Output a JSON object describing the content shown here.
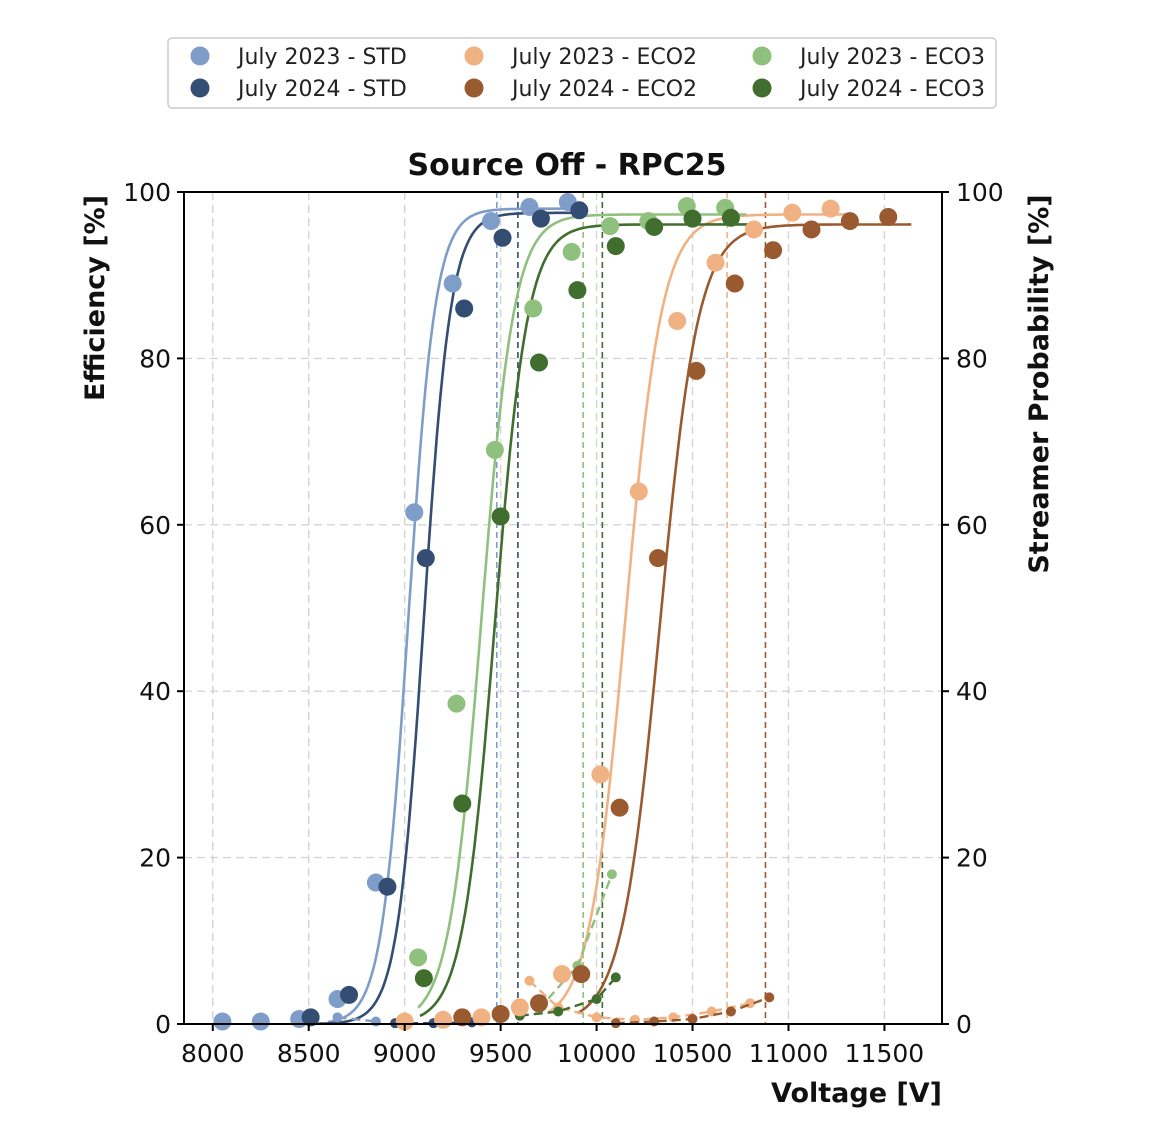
{
  "chart_data": {
    "type": "scatter",
    "title": "Source Off - RPC25",
    "xlabel": "Voltage [V]",
    "ylabel": "Efficiency [%]",
    "y2label": "Streamer Probability [%]",
    "xlim": [
      7850,
      11800
    ],
    "ylim": [
      0,
      100
    ],
    "y2lim": [
      0,
      100
    ],
    "xticks": [
      8000,
      8500,
      9000,
      9500,
      10000,
      10500,
      11000,
      11500
    ],
    "yticks": [
      0,
      20,
      40,
      60,
      80,
      100
    ],
    "grid": true,
    "grid_style": "dashed",
    "legend_position": "top-center, above plot",
    "series": [
      {
        "name": "July 2023 - STD",
        "color": "#7f9dc9",
        "efficiency": [
          [
            8050,
            0.3
          ],
          [
            8250,
            0.3
          ],
          [
            8450,
            0.6
          ],
          [
            8650,
            3
          ],
          [
            8850,
            17
          ],
          [
            9050,
            61.5
          ],
          [
            9250,
            89
          ],
          [
            9450,
            96.5
          ],
          [
            9650,
            98.2
          ],
          [
            9850,
            98.8
          ]
        ],
        "fit": {
          "max": 98,
          "center": 9020,
          "width": 70,
          "xmin": 8600,
          "xmax": 9920
        },
        "streamer": [
          [
            8650,
            0.8
          ],
          [
            8850,
            0.3
          ]
        ],
        "knee_voltage": 9480
      },
      {
        "name": "July 2024 - STD",
        "color": "#334d73",
        "efficiency": [
          [
            8510,
            0.8
          ],
          [
            8710,
            3.5
          ],
          [
            8910,
            16.5
          ],
          [
            9110,
            56
          ],
          [
            9310,
            86
          ],
          [
            9510,
            94.5
          ],
          [
            9710,
            96.8
          ],
          [
            9910,
            97.8
          ]
        ],
        "fit": {
          "max": 97.5,
          "center": 9100,
          "width": 70,
          "xmin": 8550,
          "xmax": 9920
        },
        "streamer": [
          [
            8950,
            0.1
          ],
          [
            9150,
            0.1
          ],
          [
            9350,
            0.2
          ]
        ],
        "knee_voltage": 9590
      },
      {
        "name": "July 2023 - ECO2",
        "color": "#f0b283",
        "efficiency": [
          [
            9000,
            0.3
          ],
          [
            9200,
            0.5
          ],
          [
            9400,
            0.8
          ],
          [
            9600,
            2
          ],
          [
            9820,
            6
          ],
          [
            10020,
            30
          ],
          [
            10220,
            64
          ],
          [
            10420,
            84.5
          ],
          [
            10620,
            91.5
          ],
          [
            10820,
            95.5
          ],
          [
            11020,
            97.5
          ],
          [
            11220,
            98
          ]
        ],
        "fit": {
          "max": 97.3,
          "center": 10150,
          "width": 95,
          "xmin": 9750,
          "xmax": 11320
        },
        "streamer": [
          [
            9650,
            5.2
          ],
          [
            9800,
            2
          ],
          [
            10000,
            0.8
          ],
          [
            10200,
            0.5
          ],
          [
            10400,
            0.8
          ],
          [
            10600,
            1.5
          ],
          [
            10800,
            2.5
          ]
        ],
        "knee_voltage": 10680
      },
      {
        "name": "July 2024 - ECO2",
        "color": "#9a5a30",
        "efficiency": [
          [
            9300,
            0.8
          ],
          [
            9500,
            1.2
          ],
          [
            9700,
            2.5
          ],
          [
            9920,
            6
          ],
          [
            10120,
            26
          ],
          [
            10320,
            56
          ],
          [
            10520,
            78.5
          ],
          [
            10720,
            89
          ],
          [
            10920,
            93
          ],
          [
            11120,
            95.5
          ],
          [
            11320,
            96.5
          ],
          [
            11520,
            97
          ]
        ],
        "fit": {
          "max": 96.1,
          "center": 10330,
          "width": 100,
          "xmin": 9900,
          "xmax": 11640
        },
        "streamer": [
          [
            10100,
            0.1
          ],
          [
            10300,
            0.3
          ],
          [
            10500,
            0.6
          ],
          [
            10700,
            1.5
          ],
          [
            10900,
            3.2
          ]
        ],
        "knee_voltage": 10880
      },
      {
        "name": "July 2023 - ECO3",
        "color": "#8fc07e",
        "efficiency": [
          [
            9070,
            8
          ],
          [
            9270,
            38.5
          ],
          [
            9470,
            69
          ],
          [
            9670,
            86
          ],
          [
            9870,
            92.8
          ],
          [
            10070,
            95.9
          ],
          [
            10270,
            96.5
          ],
          [
            10470,
            98.3
          ],
          [
            10670,
            98.1
          ]
        ],
        "fit": {
          "max": 97.3,
          "center": 9400,
          "width": 85,
          "xmin": 9070,
          "xmax": 10780
        },
        "streamer": [
          [
            9700,
            1.8
          ],
          [
            9900,
            7
          ],
          [
            10080,
            18
          ]
        ],
        "knee_voltage": 9930
      },
      {
        "name": "July 2024 - ECO3",
        "color": "#406e2f",
        "efficiency": [
          [
            9100,
            5.5
          ],
          [
            9300,
            26.5
          ],
          [
            9500,
            61
          ],
          [
            9700,
            79.5
          ],
          [
            9900,
            88.2
          ],
          [
            10100,
            93.5
          ],
          [
            10300,
            95.8
          ],
          [
            10500,
            96.8
          ],
          [
            10700,
            96.9
          ]
        ],
        "fit": {
          "max": 96.1,
          "center": 9470,
          "width": 85,
          "xmin": 9080,
          "xmax": 10810
        },
        "streamer": [
          [
            9600,
            1
          ],
          [
            9800,
            1.5
          ],
          [
            10000,
            3
          ],
          [
            10100,
            5.6
          ]
        ],
        "knee_voltage": 10030
      }
    ]
  },
  "legend_layout": {
    "columns": [
      [
        "July 2023 - STD",
        "July 2024 - STD"
      ],
      [
        "July 2023 - ECO2",
        "July 2024 - ECO2"
      ],
      [
        "July 2023 - ECO3",
        "July 2024 - ECO3"
      ]
    ]
  }
}
